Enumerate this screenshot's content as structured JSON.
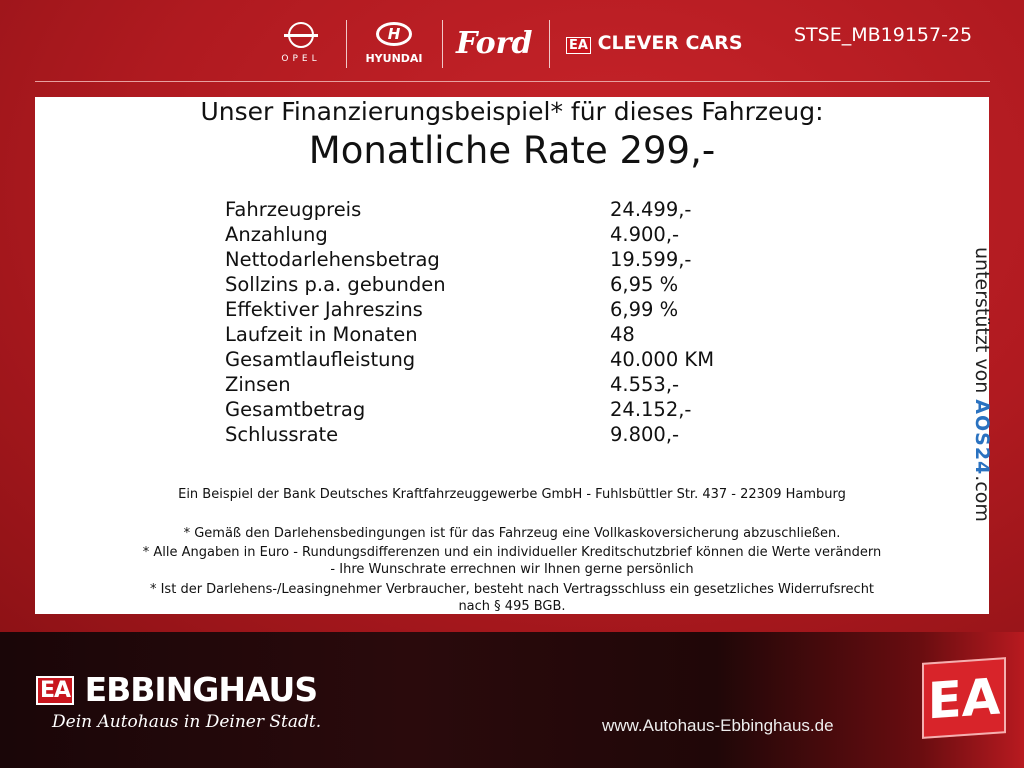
{
  "header": {
    "brands": [
      "OPEL",
      "HYUNDAI",
      "Ford",
      "CLEVER CARS"
    ],
    "clever_badge": "EA",
    "ref_code": "STSE_MB19157-25"
  },
  "panel": {
    "intro": "Unser Finanzierungsbeispiel* für dieses Fahrzeug:",
    "headline": "Monatliche Rate 299,-",
    "rows": [
      {
        "label": "Fahrzeugpreis",
        "value": "24.499,-"
      },
      {
        "label": "Anzahlung",
        "value": "4.900,-"
      },
      {
        "label": "Nettodarlehensbetrag",
        "value": "19.599,-"
      },
      {
        "label": "Sollzins p.a. gebunden",
        "value": "6,95 %"
      },
      {
        "label": "Effektiver Jahreszins",
        "value": "6,99 %"
      },
      {
        "label": "Laufzeit in Monaten",
        "value": "48"
      },
      {
        "label": "Gesamtlaufleistung",
        "value": "40.000 KM"
      },
      {
        "label": "Zinsen",
        "value": "4.553,-"
      },
      {
        "label": "Gesamtbetrag",
        "value": "24.152,-"
      },
      {
        "label": "Schlussrate",
        "value": "9.800,-"
      }
    ],
    "bank": "Ein Beispiel der Bank Deutsches Kraftfahrzeuggewerbe GmbH - Fuhlsbüttler Str. 437 - 22309 Hamburg",
    "notes": [
      "* Gemäß den Darlehensbedingungen ist für das Fahrzeug eine Vollkaskoversicherung abzuschließen.",
      "* Alle Angaben in Euro - Rundungsdifferenzen und ein individueller Kreditschutzbrief können die Werte verändern",
      "- Ihre Wunschrate errechnen wir Ihnen gerne persönlich",
      "* Ist der Darlehens-/Leasingnehmer Verbraucher, besteht nach Vertragsschluss ein gesetzliches Widerrufsrecht",
      "nach § 495 BGB."
    ],
    "supported_by": "unterstützt von",
    "aos_brand": "AOS24",
    ".com": ".com",
    "aos_suffix": ".com"
  },
  "footer": {
    "badge": "EA",
    "dealer": "EBBINGHAUS",
    "slogan": "Dein Autohaus in Deiner Stadt.",
    "website": "www.Autohaus-Ebbinghaus.de"
  },
  "colors": {
    "brand_red": "#c8161e"
  }
}
